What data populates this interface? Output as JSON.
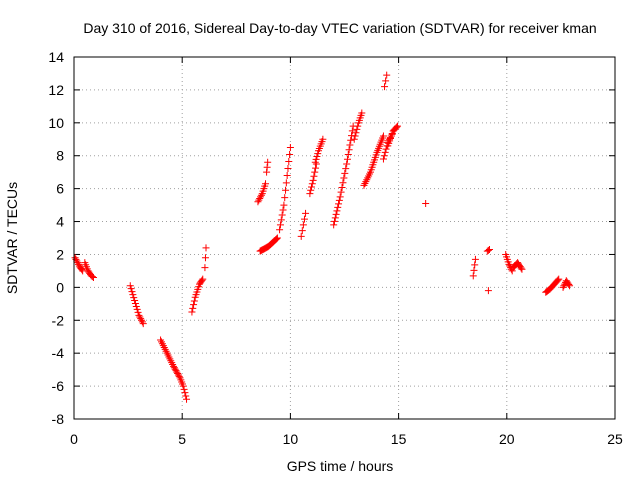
{
  "chart_data": {
    "type": "scatter",
    "title": "Day 310 of 2016, Sidereal Day-to-day VTEC variation (SDTVAR) for receiver kman",
    "xlabel": "GPS time / hours",
    "ylabel": "SDTVAR / TECUs",
    "xlim": [
      0,
      25
    ],
    "ylim": [
      -8,
      14
    ],
    "xticks": [
      0,
      5,
      10,
      15,
      20,
      25
    ],
    "yticks": [
      -8,
      -6,
      -4,
      -2,
      0,
      2,
      4,
      6,
      8,
      10,
      12,
      14
    ],
    "grid": true,
    "marker": "+",
    "color": "#ff0000",
    "series": [
      {
        "name": "SDTVAR",
        "segments": [
          {
            "x": [
              0.05,
              0.25,
              0.4
            ],
            "y": [
              1.8,
              1.3,
              1.0
            ]
          },
          {
            "x": [
              0.5,
              0.65,
              0.8,
              0.9
            ],
            "y": [
              1.5,
              1.0,
              0.7,
              0.6
            ]
          },
          {
            "x": [
              2.6,
              2.8,
              3.0,
              3.2
            ],
            "y": [
              0.1,
              -0.8,
              -1.7,
              -2.2
            ]
          },
          {
            "x": [
              4.0,
              4.3,
              4.6,
              4.9,
              5.05,
              5.2
            ],
            "y": [
              -3.2,
              -4.0,
              -4.8,
              -5.5,
              -6.0,
              -6.8
            ]
          },
          {
            "x": [
              5.45,
              5.6,
              5.8,
              5.95
            ],
            "y": [
              -1.5,
              -0.6,
              0.2,
              0.5
            ]
          },
          {
            "x": [
              6.05,
              6.1
            ],
            "y": [
              1.2,
              2.4
            ]
          },
          {
            "x": [
              8.5,
              8.7,
              8.85
            ],
            "y": [
              5.2,
              5.7,
              6.3
            ]
          },
          {
            "x": [
              8.9,
              8.95
            ],
            "y": [
              7.0,
              7.6
            ]
          },
          {
            "x": [
              8.6,
              9.0,
              9.4
            ],
            "y": [
              2.2,
              2.5,
              3.0
            ]
          },
          {
            "x": [
              9.5,
              9.7,
              9.85,
              10.0
            ],
            "y": [
              3.5,
              5.0,
              6.8,
              8.5
            ]
          },
          {
            "x": [
              10.5,
              10.6,
              10.7
            ],
            "y": [
              3.1,
              3.8,
              4.5
            ]
          },
          {
            "x": [
              10.9,
              11.05,
              11.2
            ],
            "y": [
              5.7,
              6.5,
              7.5
            ]
          },
          {
            "x": [
              11.15,
              11.3,
              11.5
            ],
            "y": [
              7.6,
              8.3,
              9.0
            ]
          },
          {
            "x": [
              12.0,
              12.3,
              12.6,
              12.9
            ],
            "y": [
              3.8,
              5.5,
              7.5,
              9.8
            ]
          },
          {
            "x": [
              12.95,
              13.15,
              13.3
            ],
            "y": [
              9.0,
              10.0,
              10.6
            ]
          },
          {
            "x": [
              13.4,
              13.7,
              14.0,
              14.3
            ],
            "y": [
              6.2,
              7.0,
              8.2,
              9.2
            ]
          },
          {
            "x": [
              14.3,
              14.5,
              14.7
            ],
            "y": [
              7.8,
              8.8,
              9.3
            ]
          },
          {
            "x": [
              14.35,
              14.45
            ],
            "y": [
              12.2,
              12.9
            ]
          },
          {
            "x": [
              14.5,
              14.75,
              14.95
            ],
            "y": [
              8.6,
              9.5,
              9.8
            ]
          },
          {
            "x": [
              16.25
            ],
            "y": [
              5.1
            ]
          },
          {
            "x": [
              18.45,
              18.55
            ],
            "y": [
              0.7,
              1.7
            ]
          },
          {
            "x": [
              19.1,
              19.2
            ],
            "y": [
              2.2,
              2.3
            ]
          },
          {
            "x": [
              19.15
            ],
            "y": [
              -0.2
            ]
          },
          {
            "x": [
              19.95,
              20.1,
              20.25
            ],
            "y": [
              2.0,
              1.4,
              1.0
            ]
          },
          {
            "x": [
              20.3,
              20.5,
              20.7
            ],
            "y": [
              1.2,
              1.5,
              1.1
            ]
          },
          {
            "x": [
              21.8,
              22.0,
              22.2,
              22.4
            ],
            "y": [
              -0.3,
              -0.1,
              0.2,
              0.5
            ]
          },
          {
            "x": [
              22.6,
              22.75,
              22.9
            ],
            "y": [
              0.0,
              0.4,
              0.1
            ]
          }
        ]
      }
    ]
  }
}
